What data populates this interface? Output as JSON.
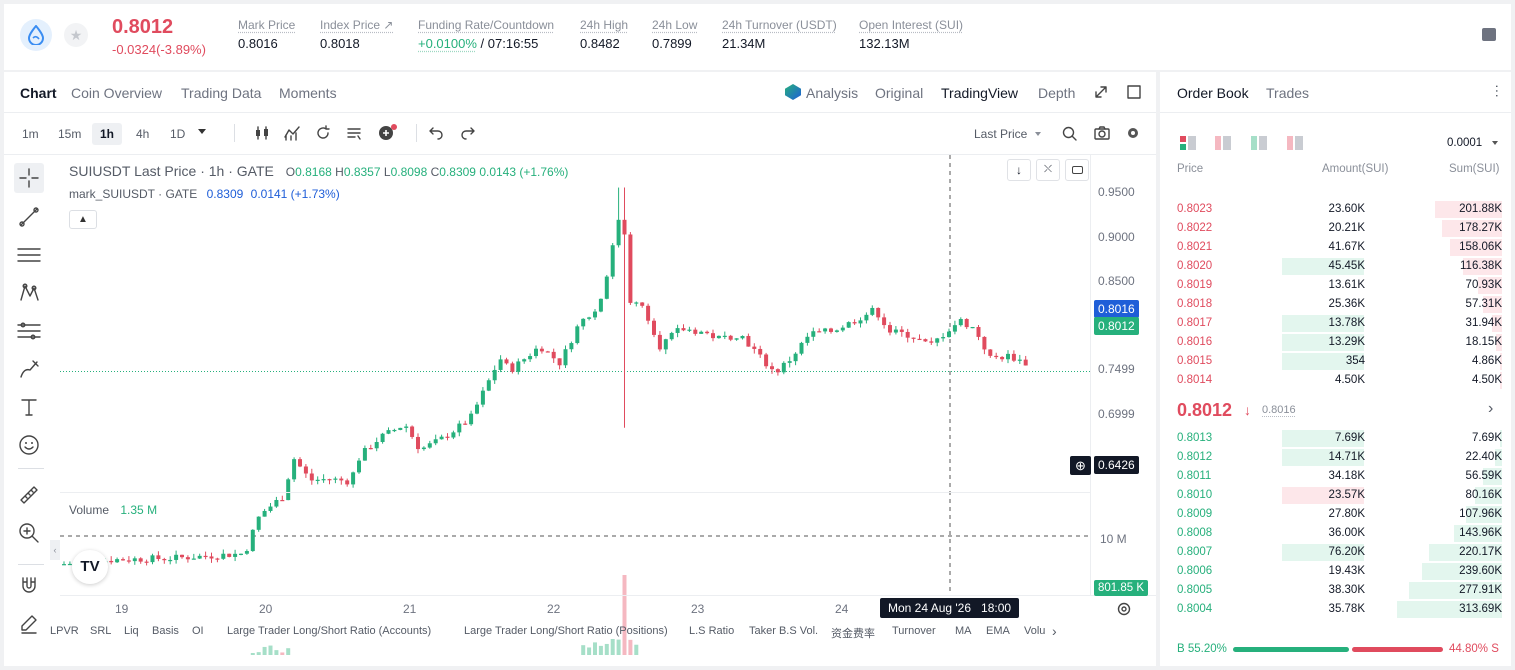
{
  "ticker": {
    "last_price": "0.8012",
    "change": "-0.0324(-3.89%)",
    "stats": [
      {
        "label": "Mark Price",
        "value": "0.8016"
      },
      {
        "label": "Index Price ↗",
        "value": "0.8018"
      },
      {
        "label": "Funding Rate/Countdown",
        "value": "+0.0100%",
        "value2": "/ 07:16:55"
      },
      {
        "label": "24h High",
        "value": "0.8482"
      },
      {
        "label": "24h Low",
        "value": "0.7899"
      },
      {
        "label": "24h Turnover (USDT)",
        "value": "21.34M"
      },
      {
        "label": "Open Interest (SUI)",
        "value": "132.13M"
      }
    ]
  },
  "chart_tabs": [
    "Chart",
    "Coin Overview",
    "Trading Data",
    "Moments"
  ],
  "view_tabs": [
    "Analysis",
    "Original",
    "TradingView",
    "Depth"
  ],
  "timeframes": [
    "1m",
    "15m",
    "1h",
    "4h",
    "1D"
  ],
  "price_type": "Last Price",
  "legend": {
    "symbol": "SUIUSDT Last Price · 1h · GATE",
    "o_label": "O",
    "o": "0.8168",
    "h_label": "H",
    "h": "0.8357",
    "l_label": "L",
    "l": "0.8098",
    "c_label": "C",
    "c": "0.8309",
    "change": "0.0143 (+1.76%)",
    "mark_name": "mark_SUIUSDT · GATE",
    "mark_value": "0.8309",
    "mark_change": "0.0141 (+1.73%)"
  },
  "price_axis": [
    "0.9500",
    "0.9000",
    "0.8500",
    "0.7499",
    "0.6999"
  ],
  "price_tags": {
    "mark": "0.8016",
    "last": "0.8012",
    "crosshair": "0.6426",
    "volume": "801.85 K"
  },
  "volume": {
    "label": "Volume",
    "value": "1.35 M",
    "axis": "10 M"
  },
  "date_axis": [
    "19",
    "20",
    "21",
    "22",
    "23",
    "24"
  ],
  "crosshair_date": "Mon 24 Aug '26   18:00",
  "bottom_tabs": [
    "LPVR",
    "SRL",
    "Liq",
    "Basis",
    "OI",
    "Large Trader Long/Short Ratio (Accounts)",
    "Large Trader Long/Short Ratio (Positions)",
    "L.S Ratio",
    "Taker B.S Vol.",
    "资金费率",
    "Turnover",
    "MA",
    "EMA",
    "Volu"
  ],
  "orderbook": {
    "tabs": [
      "Order Book",
      "Trades"
    ],
    "precision": "0.0001",
    "headers": [
      "Price",
      "Amount(SUI)",
      "Sum(SUI)"
    ],
    "asks": [
      {
        "price": "0.8023",
        "amount": "23.60K",
        "sum": "201.88K",
        "amt_frac": 0,
        "sum_frac": 0.64
      },
      {
        "price": "0.8022",
        "amount": "20.21K",
        "sum": "178.27K",
        "amt_frac": 0,
        "sum_frac": 0.57
      },
      {
        "price": "0.8021",
        "amount": "41.67K",
        "sum": "158.06K",
        "amt_frac": 0,
        "sum_frac": 0.5
      },
      {
        "price": "0.8020",
        "amount": "45.45K",
        "sum": "116.38K",
        "amt_frac": 0.69,
        "sum_frac": 0.37
      },
      {
        "price": "0.8019",
        "amount": "13.61K",
        "sum": "70.93K",
        "amt_frac": 0,
        "sum_frac": 0.23
      },
      {
        "price": "0.8018",
        "amount": "25.36K",
        "sum": "57.31K",
        "amt_frac": 0,
        "sum_frac": 0.18
      },
      {
        "price": "0.8017",
        "amount": "13.78K",
        "sum": "31.94K",
        "amt_frac": 0.69,
        "sum_frac": 0.1
      },
      {
        "price": "0.8016",
        "amount": "13.29K",
        "sum": "18.15K",
        "amt_frac": 0.69,
        "sum_frac": 0.06
      },
      {
        "price": "0.8015",
        "amount": "354",
        "sum": "4.86K",
        "amt_frac": 0.69,
        "sum_frac": 0.02
      },
      {
        "price": "0.8014",
        "amount": "4.50K",
        "sum": "4.50K",
        "amt_frac": 0,
        "sum_frac": 0.015
      }
    ],
    "mid_price": "0.8012",
    "mid_arrow": "↓",
    "mid_mark": "0.8016",
    "bids": [
      {
        "price": "0.8013",
        "amount": "7.69K",
        "sum": "7.69K",
        "amt_frac": 0.69,
        "sum_frac": 0.02
      },
      {
        "price": "0.8012",
        "amount": "14.71K",
        "sum": "22.40K",
        "amt_frac": 0.69,
        "sum_frac": 0.07
      },
      {
        "price": "0.8011",
        "amount": "34.18K",
        "sum": "56.59K",
        "amt_frac": 0,
        "sum_frac": 0.18
      },
      {
        "price": "0.8010",
        "amount": "23.57K",
        "sum": "80.16K",
        "amt_frac": 0.69,
        "amt_red": true,
        "sum_frac": 0.26
      },
      {
        "price": "0.8009",
        "amount": "27.80K",
        "sum": "107.96K",
        "amt_frac": 0,
        "sum_frac": 0.34
      },
      {
        "price": "0.8008",
        "amount": "36.00K",
        "sum": "143.96K",
        "amt_frac": 0,
        "sum_frac": 0.46
      },
      {
        "price": "0.8007",
        "amount": "76.20K",
        "sum": "220.17K",
        "amt_frac": 0.69,
        "sum_frac": 0.7
      },
      {
        "price": "0.8006",
        "amount": "19.43K",
        "sum": "239.60K",
        "amt_frac": 0,
        "sum_frac": 0.76
      },
      {
        "price": "0.8005",
        "amount": "38.30K",
        "sum": "277.91K",
        "amt_frac": 0,
        "sum_frac": 0.89
      },
      {
        "price": "0.8004",
        "amount": "35.78K",
        "sum": "313.69K",
        "amt_frac": 0,
        "sum_frac": 1.0
      }
    ],
    "buy_ratio": "B 55.20%",
    "sell_ratio": "44.80% S",
    "buy_frac": 0.552
  },
  "colors": {
    "up": "#26b07c",
    "down": "#e04b5e",
    "mark": "#1f5ed8"
  }
}
